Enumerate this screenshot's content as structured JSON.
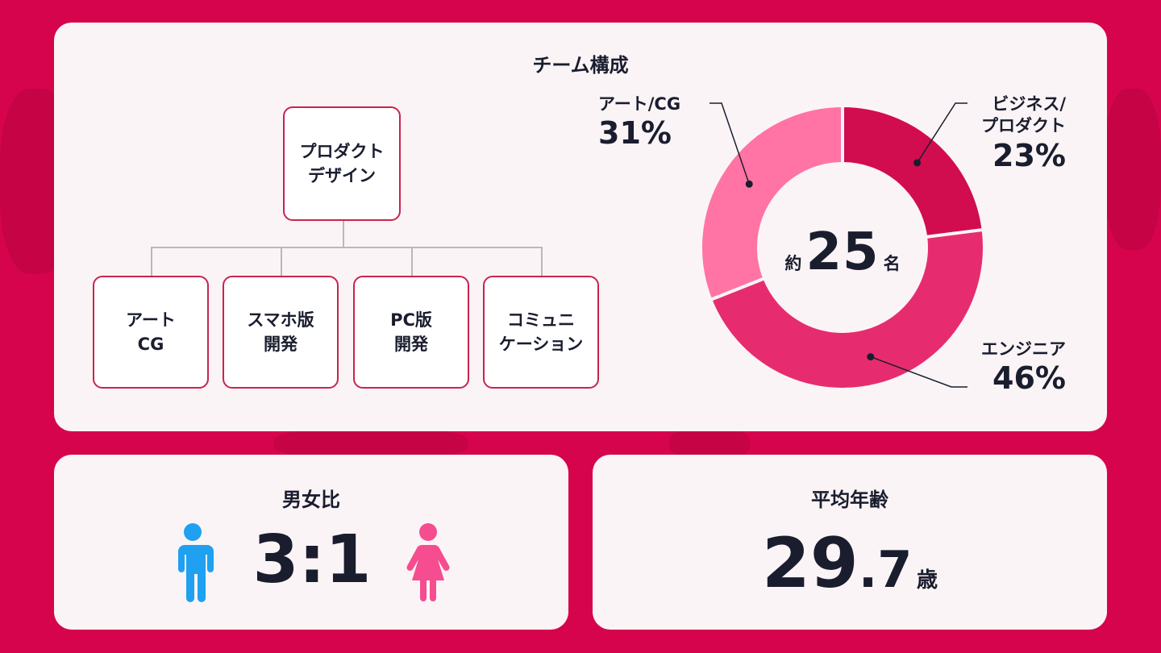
{
  "team": {
    "title": "チーム構成",
    "root": "プロダクト\nデザイン",
    "children": [
      "アート\nCG",
      "スマホ版\n開発",
      "PC版\n開発",
      "コミュニ\nケーション"
    ]
  },
  "donut": {
    "center_prefix": "約",
    "center_value": "25",
    "center_suffix": "名"
  },
  "chart_data": {
    "type": "pie",
    "donut": true,
    "slices": [
      {
        "label": "ビジネス/\nプロダクト",
        "pct_label": "23%",
        "value": 23,
        "color": "#d10d4f"
      },
      {
        "label": "エンジニア",
        "pct_label": "46%",
        "value": 46,
        "color": "#e62c6e"
      },
      {
        "label": "アート/CG",
        "pct_label": "31%",
        "value": 31,
        "color": "#ff74a4"
      }
    ],
    "start": "top",
    "direction": "clockwise"
  },
  "gender": {
    "title": "男女比",
    "ratio": "3:1",
    "male_icon": "male-person-icon",
    "female_icon": "female-person-icon",
    "male_color": "#1fa0f0",
    "female_color": "#f54d8f"
  },
  "age": {
    "title": "平均年齢",
    "value_int": "29",
    "value_dec": ".7",
    "unit": "歳"
  }
}
